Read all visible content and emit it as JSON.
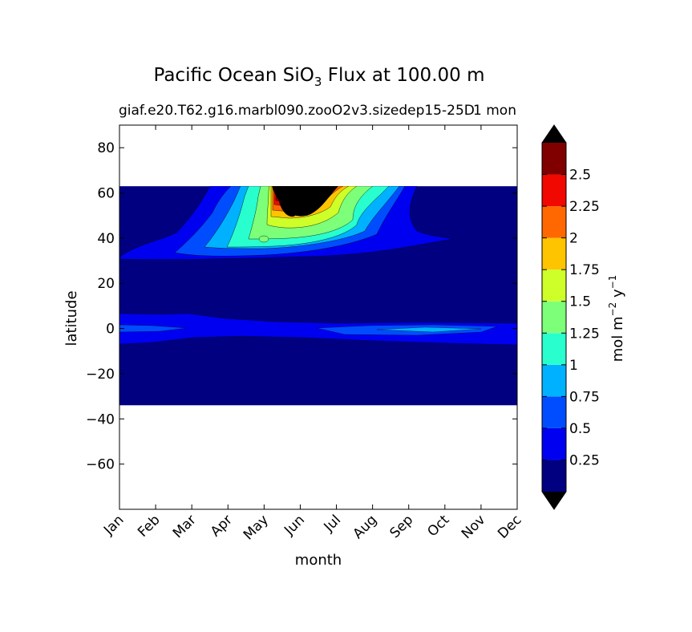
{
  "chart_data": {
    "type": "heatmap",
    "title": {
      "prefix": "Pacific Ocean SiO",
      "subscript": "3",
      "suffix": " Flux at 100.00 m"
    },
    "subtitle_left": "giaf.e20.T62.g16.marbl090.zooO2v3.sizedep15-25D",
    "subtitle_right": "1 mon",
    "xlabel": "month",
    "ylabel": "latitude",
    "x_categories": [
      "Jan",
      "Feb",
      "Mar",
      "Apr",
      "May",
      "Jun",
      "Jul",
      "Aug",
      "Sep",
      "Oct",
      "Nov",
      "Dec"
    ],
    "ylim": [
      -80,
      90
    ],
    "y_ticks": [
      80,
      60,
      40,
      20,
      0,
      -20,
      -40,
      -60
    ],
    "y_tick_labels": [
      "80",
      "60",
      "40",
      "20",
      "0",
      "−20",
      "−40",
      "−60"
    ],
    "data_lat_range": [
      -34,
      63
    ],
    "colorbar": {
      "label_text": "mol m",
      "label_sup1": "−2",
      "label_mid": " y",
      "label_sup2": "−1",
      "levels": [
        0.0,
        0.25,
        0.5,
        0.75,
        1.0,
        1.25,
        1.5,
        1.75,
        2.0,
        2.25,
        2.5,
        2.75
      ],
      "tick_labels": [
        "0.25",
        "0.5",
        "0.75",
        "1",
        "1.25",
        "1.5",
        "1.75",
        "2",
        "2.25",
        "2.5"
      ],
      "colors": [
        "#000080",
        "#0000f1",
        "#004dff",
        "#00b1ff",
        "#29ffce",
        "#7dff7a",
        "#ceff29",
        "#ffc400",
        "#ff6800",
        "#f10800",
        "#800000"
      ],
      "under_color": "#000000",
      "over_color": "#000000"
    },
    "features": [
      {
        "name": "equatorial-band",
        "lat_center": 0,
        "value_approx": 0.5
      },
      {
        "name": "equatorial-peak-sep-oct",
        "lat_center": -1,
        "value_approx": 1.0
      },
      {
        "name": "northern-bloom",
        "month_peak": "Jun",
        "lat_center": 55,
        "value_approx": 2.75
      }
    ]
  }
}
